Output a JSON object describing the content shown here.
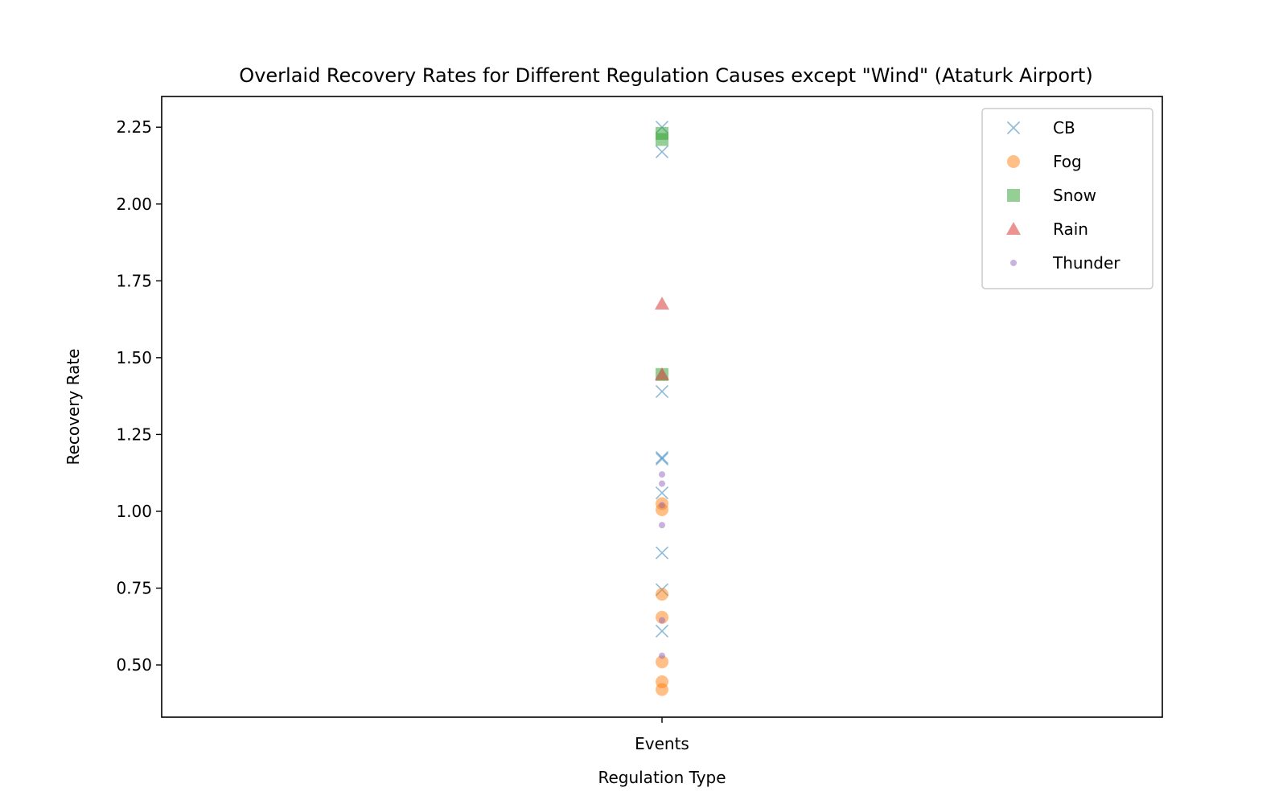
{
  "chart_data": {
    "type": "scatter",
    "title": "Overlaid Recovery Rates for Different Regulation Causes except \"Wind\" (Ataturk Airport)",
    "xlabel": "Regulation Type",
    "ylabel": "Recovery Rate",
    "categories": [
      "Events"
    ],
    "ylim": [
      0.33,
      2.35
    ],
    "yticks": [
      "0.50",
      "0.75",
      "1.00",
      "1.25",
      "1.50",
      "1.75",
      "2.00",
      "2.25"
    ],
    "grid": false,
    "legend_position": "top-right",
    "series": [
      {
        "name": "CB",
        "marker": "x",
        "color": "#1f77b4",
        "values": [
          2.25,
          2.17,
          1.39,
          1.17,
          1.175,
          1.06,
          0.865,
          0.745,
          0.61
        ]
      },
      {
        "name": "Fog",
        "marker": "circle",
        "color": "#ff7f0e",
        "values": [
          1.025,
          1.005,
          0.73,
          0.655,
          0.51,
          0.445,
          0.42
        ]
      },
      {
        "name": "Snow",
        "marker": "square",
        "color": "#2ca02c",
        "values": [
          2.23,
          2.21,
          1.445
        ]
      },
      {
        "name": "Rain",
        "marker": "triangle",
        "color": "#d62728",
        "values": [
          1.675,
          1.445
        ]
      },
      {
        "name": "Thunder",
        "marker": "dot",
        "color": "#9467bd",
        "values": [
          1.12,
          1.09,
          1.02,
          0.955,
          0.645,
          0.53
        ]
      }
    ]
  }
}
